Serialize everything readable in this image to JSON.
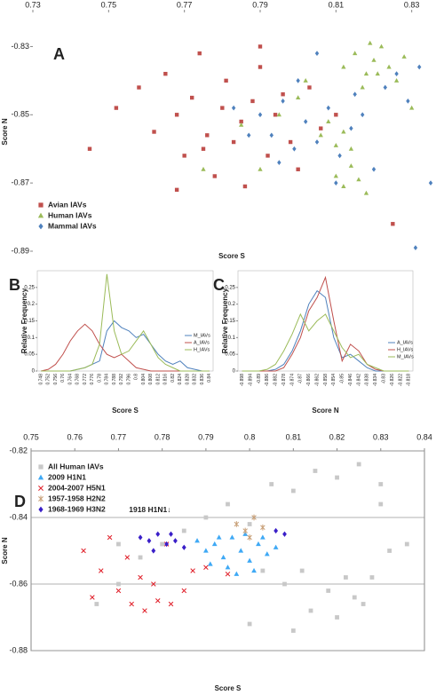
{
  "chart_data": [
    {
      "type": "scatter",
      "panel": "A",
      "x_label": "Score S",
      "y_label": "Score N",
      "xlim": [
        0.73,
        0.835
      ],
      "ylim": [
        -0.89,
        -0.82
      ],
      "xticks": [
        0.73,
        0.75,
        0.77,
        0.79,
        0.81,
        0.83
      ],
      "yticks": [
        -0.83,
        -0.85,
        -0.87,
        -0.89
      ],
      "grid": false,
      "series": [
        {
          "name": "Avian IAVs",
          "color": "#c0504d",
          "marker": "square",
          "x": [
            0.745,
            0.752,
            0.758,
            0.762,
            0.765,
            0.768,
            0.77,
            0.772,
            0.774,
            0.776,
            0.778,
            0.78,
            0.781,
            0.783,
            0.785,
            0.786,
            0.788,
            0.79,
            0.792,
            0.794,
            0.796,
            0.798,
            0.8,
            0.803,
            0.806,
            0.81,
            0.825,
            0.775,
            0.768,
            0.79
          ],
          "values": [
            -0.86,
            -0.848,
            -0.842,
            -0.855,
            -0.838,
            -0.85,
            -0.862,
            -0.845,
            -0.832,
            -0.856,
            -0.868,
            -0.848,
            -0.84,
            -0.858,
            -0.852,
            -0.871,
            -0.846,
            -0.836,
            -0.862,
            -0.85,
            -0.844,
            -0.858,
            -0.866,
            -0.842,
            -0.854,
            -0.85,
            -0.882,
            -0.86,
            -0.872,
            -0.83
          ]
        },
        {
          "name": "Human IAVs",
          "color": "#9bbb59",
          "marker": "triangle",
          "x": [
            0.812,
            0.815,
            0.818,
            0.82,
            0.822,
            0.824,
            0.826,
            0.828,
            0.817,
            0.819,
            0.821,
            0.806,
            0.808,
            0.81,
            0.812,
            0.814,
            0.81,
            0.812,
            0.814,
            0.816,
            0.818,
            0.795,
            0.8,
            0.785,
            0.79,
            0.83,
            0.802,
            0.775
          ],
          "values": [
            -0.836,
            -0.832,
            -0.838,
            -0.834,
            -0.83,
            -0.836,
            -0.84,
            -0.833,
            -0.842,
            -0.829,
            -0.838,
            -0.856,
            -0.852,
            -0.859,
            -0.855,
            -0.86,
            -0.868,
            -0.871,
            -0.865,
            -0.869,
            -0.873,
            -0.85,
            -0.845,
            -0.853,
            -0.866,
            -0.848,
            -0.84,
            -0.866
          ]
        },
        {
          "name": "Mammal IAVs",
          "color": "#4f81bd",
          "marker": "diamond",
          "x": [
            0.79,
            0.793,
            0.796,
            0.799,
            0.802,
            0.805,
            0.808,
            0.811,
            0.814,
            0.817,
            0.82,
            0.823,
            0.826,
            0.829,
            0.832,
            0.795,
            0.8,
            0.81,
            0.787,
            0.783,
            0.835,
            0.831,
            0.805,
            0.815
          ],
          "values": [
            -0.85,
            -0.856,
            -0.846,
            -0.86,
            -0.852,
            -0.858,
            -0.848,
            -0.862,
            -0.854,
            -0.85,
            -0.866,
            -0.842,
            -0.838,
            -0.846,
            -0.836,
            -0.864,
            -0.84,
            -0.87,
            -0.856,
            -0.848,
            -0.87,
            -0.889,
            -0.832,
            -0.844
          ]
        }
      ]
    },
    {
      "type": "line",
      "panel": "B",
      "x_label": "Score S",
      "y_label": "Relative Frequency",
      "categories": [
        "0.748",
        "0.752",
        "0.756",
        "0.76",
        "0.764",
        "0.768",
        "0.772",
        "0.776",
        "0.78",
        "0.784",
        "0.788",
        "0.792",
        "0.796",
        "0.8",
        "0.804",
        "0.808",
        "0.812",
        "0.816",
        "0.82",
        "0.824",
        "0.828",
        "0.832",
        "0.836",
        "0.84"
      ],
      "ylim": [
        0,
        0.3
      ],
      "yticks": [
        0,
        0.05,
        0.1,
        0.15,
        0.2,
        0.25
      ],
      "series": [
        {
          "name": "M_IAVs",
          "color": "#4f81bd",
          "values": [
            0,
            0,
            0,
            0,
            0,
            0.005,
            0.01,
            0.02,
            0.03,
            0.12,
            0.15,
            0.13,
            0.12,
            0.1,
            0.11,
            0.08,
            0.05,
            0.03,
            0.02,
            0.03,
            0.01,
            0.005,
            0,
            0
          ]
        },
        {
          "name": "A_IAVs",
          "color": "#c0504d",
          "values": [
            0,
            0.005,
            0.02,
            0.05,
            0.09,
            0.12,
            0.14,
            0.12,
            0.08,
            0.05,
            0.04,
            0.05,
            0.03,
            0.01,
            0.005,
            0,
            0,
            0,
            0,
            0,
            0,
            0,
            0,
            0
          ]
        },
        {
          "name": "H_IAVs",
          "color": "#9bbb59",
          "values": [
            0,
            0,
            0,
            0,
            0,
            0.005,
            0.01,
            0.02,
            0.08,
            0.29,
            0.12,
            0.05,
            0.06,
            0.09,
            0.12,
            0.08,
            0.04,
            0.02,
            0.01,
            0,
            0,
            0,
            0,
            0
          ]
        }
      ]
    },
    {
      "type": "line",
      "panel": "C",
      "x_label": "Score N",
      "y_label": "Relative Frequency",
      "categories": [
        "-0.898",
        "-0.894",
        "-0.89",
        "-0.886",
        "-0.882",
        "-0.878",
        "-0.874",
        "-0.87",
        "-0.866",
        "-0.862",
        "-0.858",
        "-0.854",
        "-0.85",
        "-0.846",
        "-0.842",
        "-0.838",
        "-0.834",
        "-0.83",
        "-0.826",
        "-0.822",
        "-0.818"
      ],
      "ylim": [
        0,
        0.3
      ],
      "yticks": [
        0,
        0.05,
        0.1,
        0.15,
        0.2,
        0.25
      ],
      "series": [
        {
          "name": "A_IAVs",
          "color": "#4f81bd",
          "values": [
            0,
            0,
            0,
            0,
            0.005,
            0.02,
            0.06,
            0.12,
            0.2,
            0.24,
            0.22,
            0.1,
            0.04,
            0.05,
            0.03,
            0.01,
            0,
            0,
            0,
            0,
            0
          ]
        },
        {
          "name": "H_IAVs",
          "color": "#c0504d",
          "values": [
            0,
            0,
            0,
            0,
            0,
            0.01,
            0.05,
            0.1,
            0.18,
            0.22,
            0.28,
            0.15,
            0.03,
            0.08,
            0.06,
            0.02,
            0.005,
            0,
            0,
            0,
            0
          ]
        },
        {
          "name": "M_IAVs",
          "color": "#9bbb59",
          "values": [
            0,
            0,
            0,
            0.005,
            0.02,
            0.06,
            0.11,
            0.17,
            0.12,
            0.15,
            0.17,
            0.12,
            0.07,
            0.04,
            0.05,
            0.02,
            0.01,
            0,
            0,
            0,
            0
          ]
        }
      ]
    },
    {
      "type": "scatter",
      "panel": "D",
      "x_label": "Score S",
      "y_label": "Score N",
      "annotation": "1918 H1N1↓",
      "xlim": [
        0.75,
        0.84
      ],
      "ylim": [
        -0.88,
        -0.82
      ],
      "xticks": [
        0.75,
        0.76,
        0.77,
        0.78,
        0.79,
        0.8,
        0.81,
        0.82,
        0.83,
        0.84
      ],
      "yticks": [
        -0.82,
        -0.84,
        -0.86,
        -0.88
      ],
      "grid": true,
      "series": [
        {
          "name": "All Human IAVs",
          "color": "#c8c8c8",
          "marker": "square",
          "x": [
            0.77,
            0.775,
            0.78,
            0.785,
            0.79,
            0.795,
            0.8,
            0.805,
            0.81,
            0.815,
            0.82,
            0.825,
            0.83,
            0.812,
            0.818,
            0.822,
            0.826,
            0.808,
            0.814,
            0.82,
            0.824,
            0.828,
            0.832,
            0.836,
            0.803,
            0.765,
            0.77,
            0.8,
            0.81,
            0.83
          ],
          "values": [
            -0.86,
            -0.852,
            -0.848,
            -0.844,
            -0.84,
            -0.836,
            -0.842,
            -0.83,
            -0.832,
            -0.826,
            -0.828,
            -0.824,
            -0.83,
            -0.856,
            -0.862,
            -0.858,
            -0.866,
            -0.86,
            -0.868,
            -0.87,
            -0.864,
            -0.858,
            -0.85,
            -0.848,
            -0.856,
            -0.866,
            -0.848,
            -0.872,
            -0.874,
            -0.836
          ]
        },
        {
          "name": "2009 H1N1",
          "color": "#3fa9f5",
          "marker": "triangle",
          "x": [
            0.79,
            0.792,
            0.794,
            0.796,
            0.798,
            0.8,
            0.802,
            0.804,
            0.791,
            0.795,
            0.799,
            0.803,
            0.797,
            0.793,
            0.801,
            0.806,
            0.788
          ],
          "values": [
            -0.85,
            -0.848,
            -0.852,
            -0.846,
            -0.85,
            -0.853,
            -0.848,
            -0.851,
            -0.854,
            -0.855,
            -0.845,
            -0.846,
            -0.857,
            -0.846,
            -0.856,
            -0.849,
            -0.847
          ]
        },
        {
          "name": "2004-2007 H5N1",
          "color": "#e0202a",
          "marker": "x",
          "x": [
            0.762,
            0.766,
            0.77,
            0.773,
            0.776,
            0.779,
            0.782,
            0.785,
            0.768,
            0.772,
            0.775,
            0.778,
            0.781,
            0.764,
            0.787,
            0.79,
            0.795
          ],
          "values": [
            -0.85,
            -0.856,
            -0.862,
            -0.866,
            -0.868,
            -0.865,
            -0.866,
            -0.862,
            -0.846,
            -0.852,
            -0.858,
            -0.86,
            -0.848,
            -0.864,
            -0.856,
            -0.855,
            -0.857
          ]
        },
        {
          "name": "1957-1958 H2N2",
          "color": "#c8a078",
          "marker": "asterisk",
          "x": [
            0.797,
            0.799,
            0.801,
            0.803,
            0.8
          ],
          "values": [
            -0.842,
            -0.844,
            -0.84,
            -0.843,
            -0.846
          ]
        },
        {
          "name": "1968-1969 H3N2",
          "color": "#3a1fc8",
          "marker": "diamond",
          "x": [
            0.775,
            0.777,
            0.779,
            0.781,
            0.783,
            0.785,
            0.778,
            0.782,
            0.806,
            0.808
          ],
          "values": [
            -0.846,
            -0.847,
            -0.845,
            -0.848,
            -0.847,
            -0.849,
            -0.85,
            -0.845,
            -0.844,
            -0.845
          ]
        }
      ]
    }
  ]
}
